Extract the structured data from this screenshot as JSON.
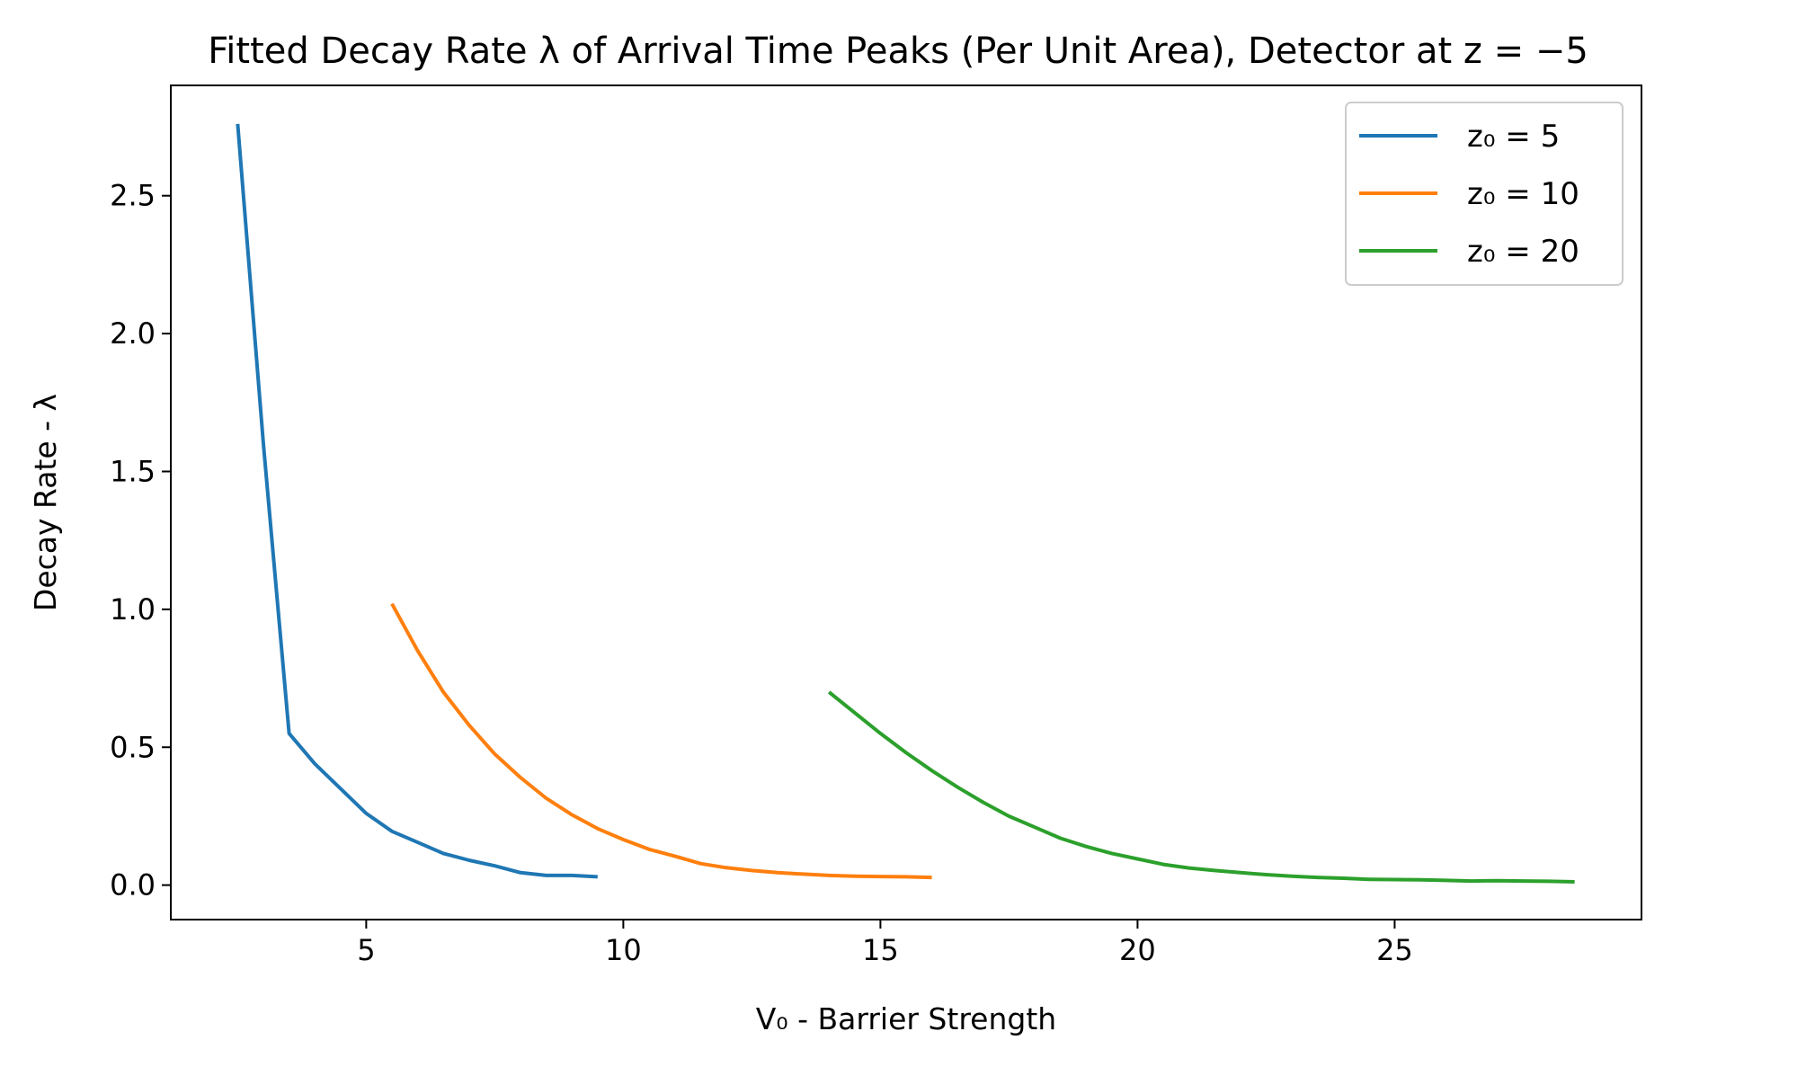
{
  "chart_data": {
    "type": "line",
    "title": "Fitted Decay Rate λ of Arrival Time Peaks (Per Unit Area), Detector at z = −5",
    "xlabel": "V₀ - Barrier Strength",
    "ylabel": "Decay Rate - λ",
    "xlim": [
      1.2,
      29.8
    ],
    "ylim": [
      -0.125,
      2.9
    ],
    "xticks": [
      5,
      10,
      15,
      20,
      25
    ],
    "xtick_labels": [
      "5",
      "10",
      "15",
      "20",
      "25"
    ],
    "yticks": [
      0.0,
      0.5,
      1.0,
      1.5,
      2.0,
      2.5
    ],
    "ytick_labels": [
      "0.0",
      "0.5",
      "1.0",
      "1.5",
      "2.0",
      "2.5"
    ],
    "grid": false,
    "legend_position": "top-right",
    "series": [
      {
        "name": "z₀ = 5",
        "color": "#1f77b4",
        "x": [
          2.5,
          3.0,
          3.5,
          4.0,
          4.5,
          5.0,
          5.5,
          6.0,
          6.5,
          7.0,
          7.5,
          8.0,
          8.5,
          9.0,
          9.5
        ],
        "y": [
          2.76,
          1.6,
          0.55,
          0.44,
          0.35,
          0.26,
          0.195,
          0.155,
          0.115,
          0.09,
          0.07,
          0.045,
          0.035,
          0.035,
          0.03
        ]
      },
      {
        "name": "z₀ = 10",
        "color": "#ff7f0e",
        "x": [
          5.5,
          6.0,
          6.5,
          7.0,
          7.5,
          8.0,
          8.5,
          9.0,
          9.5,
          10.0,
          10.5,
          11.0,
          11.5,
          12.0,
          12.5,
          13.0,
          13.5,
          14.0,
          14.5,
          15.0,
          15.5,
          16.0
        ],
        "y": [
          1.02,
          0.85,
          0.7,
          0.58,
          0.475,
          0.39,
          0.315,
          0.255,
          0.205,
          0.165,
          0.13,
          0.105,
          0.078,
          0.063,
          0.053,
          0.045,
          0.04,
          0.035,
          0.032,
          0.031,
          0.03,
          0.028
        ]
      },
      {
        "name": "z₀ = 20",
        "color": "#2ca02c",
        "x": [
          14.0,
          14.5,
          15.0,
          15.5,
          16.0,
          16.5,
          17.0,
          17.5,
          18.0,
          18.5,
          19.0,
          19.5,
          20.0,
          20.5,
          21.0,
          21.5,
          22.0,
          22.5,
          23.0,
          23.5,
          24.0,
          24.5,
          25.0,
          25.5,
          26.0,
          26.5,
          27.0,
          27.5,
          28.0,
          28.5
        ],
        "y": [
          0.7,
          0.625,
          0.55,
          0.48,
          0.415,
          0.355,
          0.3,
          0.25,
          0.21,
          0.17,
          0.14,
          0.115,
          0.095,
          0.075,
          0.062,
          0.053,
          0.045,
          0.038,
          0.032,
          0.028,
          0.025,
          0.021,
          0.02,
          0.019,
          0.017,
          0.015,
          0.016,
          0.015,
          0.014,
          0.012
        ]
      }
    ]
  }
}
